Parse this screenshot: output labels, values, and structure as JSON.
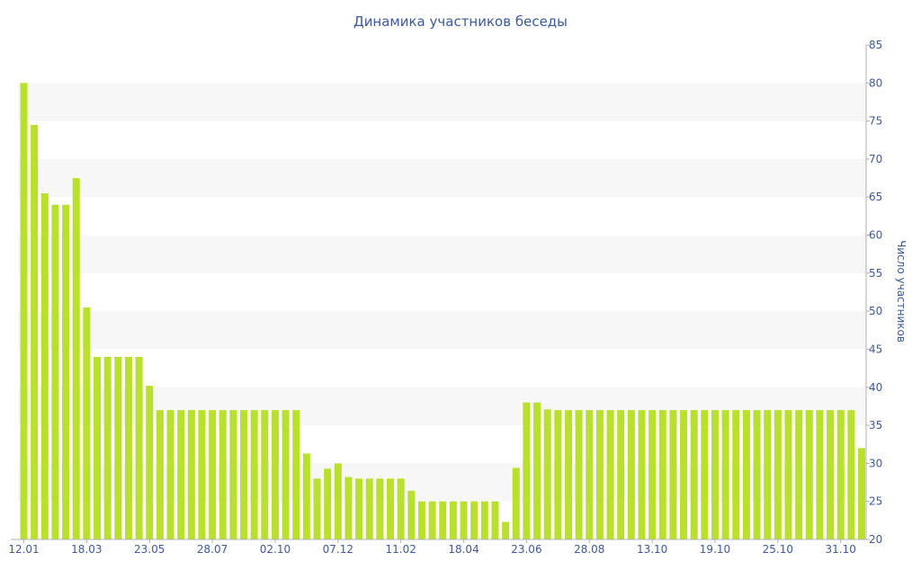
{
  "chart_data": {
    "type": "bar",
    "title": "Динамика участников беседы",
    "xlabel": "",
    "ylabel": "Число участников",
    "ylim": [
      20,
      85
    ],
    "y_ticks": [
      20,
      25,
      30,
      35,
      40,
      45,
      50,
      55,
      60,
      65,
      70,
      75,
      80,
      85
    ],
    "x_tick_labels": [
      "12.01",
      "18.03",
      "23.05",
      "28.07",
      "02.10",
      "07.12",
      "11.02",
      "18.04",
      "23.06",
      "28.08",
      "13.10",
      "19.10",
      "25.10",
      "31.10"
    ],
    "x_tick_bar_index": [
      0,
      6,
      12,
      18,
      24,
      30,
      36,
      42,
      48,
      54,
      60,
      66,
      72,
      78
    ],
    "values": [
      80,
      74.5,
      65.5,
      64,
      64,
      67.5,
      50.5,
      44,
      44,
      44,
      44,
      44,
      40.2,
      37,
      37,
      37,
      37,
      37,
      37,
      37,
      37,
      37,
      37,
      37,
      37,
      37,
      37,
      31.3,
      28,
      29.3,
      30,
      28.2,
      28,
      28,
      28,
      28,
      28,
      26.4,
      25,
      25,
      25,
      25,
      25,
      25,
      25,
      25,
      22.3,
      29.4,
      38,
      38,
      37.1,
      37,
      37,
      37,
      37,
      37,
      37,
      37,
      37,
      37,
      37,
      37,
      37,
      37,
      37,
      37,
      37,
      37,
      37,
      37,
      37,
      37,
      37,
      37,
      37,
      37,
      37,
      37,
      37,
      37,
      32
    ],
    "y_axis_side": "right",
    "grid": "alternating horizontal bands",
    "colors": {
      "bar": "#b8e02c",
      "band": "#f7f7f7",
      "text": "#3d5a99",
      "axis": "#b0b0b0"
    }
  }
}
